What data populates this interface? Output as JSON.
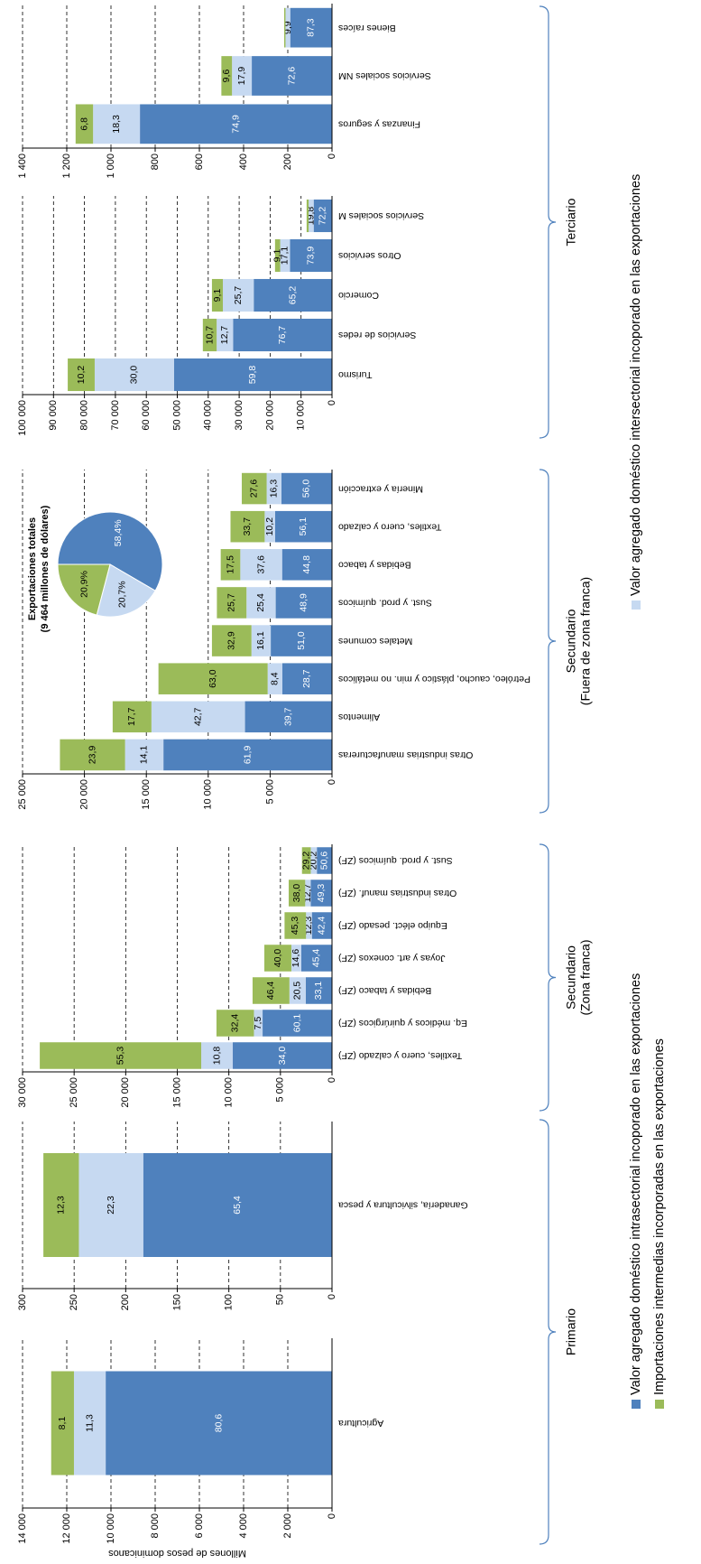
{
  "y_axis_title": "Millones de pesos  dominicanos",
  "groups": [
    {
      "label": [
        "Primario"
      ]
    },
    {
      "label": [
        "Secundario",
        "(Zona  franca)"
      ]
    },
    {
      "label": [
        "Secundario",
        "(Fuera de zona franca)"
      ]
    },
    {
      "label": [
        "Terciario"
      ]
    }
  ],
  "chart_data": [
    {
      "type": "stacked_bar",
      "categories": [
        "Agricultura"
      ],
      "series": [
        {
          "name": "Valor agregado doméstico intrasectorial incoporado en las exportaciones",
          "color": "#4f81bd",
          "values": [
            10240
          ],
          "percent_labels": [
            "80,6"
          ]
        },
        {
          "name": "Valor agregado doméstico intersectorial incoporado en las exportaciones",
          "color": "#c6d9f1",
          "values": [
            1435
          ],
          "percent_labels": [
            "11,3"
          ]
        },
        {
          "name": "Importaciones intermedias incorporadas en las exportaciones",
          "color": "#9bbb59",
          "values": [
            1030
          ],
          "percent_labels": [
            "8,1"
          ]
        }
      ],
      "ylim": [
        0,
        14000
      ],
      "yticks": [
        0,
        {
          "value": 2000,
          "label": "2 000"
        },
        {
          "value": 4000,
          "label": "4 000"
        },
        {
          "value": 6000,
          "label": "6 000"
        },
        {
          "value": 8000,
          "label": "8 000"
        },
        {
          "value": 10000,
          "label": "10 000"
        },
        {
          "value": 12000,
          "label": "12 000"
        },
        {
          "value": 14000,
          "label": "14 000"
        }
      ],
      "grid": true
    },
    {
      "type": "stacked_bar",
      "categories": [
        "Ganadería, silvicultura y pesca"
      ],
      "series": [
        {
          "color": "#4f81bd",
          "values": [
            183
          ],
          "percent_labels": [
            "65,4"
          ]
        },
        {
          "color": "#c6d9f1",
          "values": [
            62.4
          ],
          "percent_labels": [
            "22,3"
          ]
        },
        {
          "color": "#9bbb59",
          "values": [
            34.4
          ],
          "percent_labels": [
            "12,3"
          ]
        }
      ],
      "ylim": [
        0,
        300
      ],
      "yticks": [
        0,
        50,
        100,
        150,
        200,
        250,
        300
      ],
      "grid": true
    },
    {
      "type": "stacked_bar",
      "categories": [
        "Textiles, cuero y calzado (ZF)",
        "Eq. médicos y quirúrgicos (ZF)",
        "Bebidas y tabaco (ZF)",
        "Joyas y art. conexos (ZF)",
        "Equipo eléct. pesado (ZF)",
        "Otras industrias manuf. (ZF)",
        "Sust. y prod. químicos (ZF)"
      ],
      "series": [
        {
          "color": "#4f81bd",
          "values": [
            9620,
            6730,
            2550,
            2980,
            1950,
            2070,
            1470
          ],
          "percent_labels": [
            "34,0",
            "60,1",
            "33,1",
            "45,4",
            "42,4",
            "49,3",
            "50,6"
          ]
        },
        {
          "color": "#c6d9f1",
          "values": [
            3060,
            840,
            1580,
            960,
            570,
            530,
            590
          ],
          "percent_labels": [
            "10,8",
            "7,5",
            "20,5",
            "14,6",
            "12,3",
            "12,7",
            "20,2"
          ]
        },
        {
          "color": "#9bbb59",
          "values": [
            15650,
            3630,
            3570,
            2620,
            2080,
            1600,
            850
          ],
          "percent_labels": [
            "55,3",
            "32,4",
            "46,4",
            "40,0",
            "45,3",
            "38,0",
            "29,2"
          ]
        }
      ],
      "ylim": [
        0,
        30000
      ],
      "yticks": [
        0,
        {
          "value": 5000,
          "label": "5 000"
        },
        {
          "value": 10000,
          "label": "10 000"
        },
        {
          "value": 15000,
          "label": "15 000"
        },
        {
          "value": 20000,
          "label": "20 000"
        },
        {
          "value": 25000,
          "label": "25 000"
        },
        {
          "value": 30000,
          "label": "30 000"
        }
      ],
      "grid": true
    },
    {
      "type": "stacked_bar",
      "categories": [
        "Otras industrias manufactureras",
        "Alimentos",
        "Petróleo, caucho, plástico y min. no metálicos",
        "Metales comunes",
        "Sust. y prod. químicos",
        "Bebidas y tabaco",
        "Textiles, cuero y calzado",
        "Minería y extracción"
      ],
      "series": [
        {
          "color": "#4f81bd",
          "values": [
            13620,
            7030,
            4020,
            4950,
            4550,
            4030,
            4600,
            4090
          ],
          "percent_labels": [
            "61,9",
            "39,7",
            "28,7",
            "51,0",
            "48,9",
            "44,8",
            "56,1",
            "56,0"
          ]
        },
        {
          "color": "#c6d9f1",
          "values": [
            3100,
            7560,
            1180,
            1560,
            2360,
            3380,
            840,
            1190
          ],
          "percent_labels": [
            "14,1",
            "42,7",
            "8,4",
            "16,1",
            "25,4",
            "37,6",
            "10,2",
            "16,3"
          ]
        },
        {
          "color": "#9bbb59",
          "values": [
            5260,
            3130,
            8820,
            3190,
            2390,
            1580,
            2760,
            2010
          ],
          "percent_labels": [
            "23,9",
            "17,7",
            "63,0",
            "32,9",
            "25,7",
            "17,5",
            "33,7",
            "27,6"
          ]
        }
      ],
      "ylim": [
        0,
        25000
      ],
      "yticks": [
        0,
        {
          "value": 5000,
          "label": "5 000"
        },
        {
          "value": 10000,
          "label": "10 000"
        },
        {
          "value": 15000,
          "label": "15 000"
        },
        {
          "value": 20000,
          "label": "20 000"
        },
        {
          "value": 25000,
          "label": "25 000"
        }
      ],
      "grid": true
    },
    {
      "type": "pie",
      "title": "Exportaciones totales",
      "subtitle": "(9 464 millones de dólares)",
      "values": [
        58.4,
        20.7,
        20.9
      ],
      "value_labels": [
        "58,4%",
        "20,7%",
        "20,9%"
      ],
      "colors": [
        "#4f81bd",
        "#c6d9f1",
        "#9bbb59"
      ]
    },
    {
      "type": "stacked_bar",
      "categories": [
        "Turismo",
        "Servicios de redes",
        "Comercio",
        "Otros servicios",
        "Servicios sociales M"
      ],
      "series": [
        {
          "color": "#4f81bd",
          "values": [
            51070,
            31980,
            25300,
            13600,
            5920
          ],
          "percent_labels": [
            "59,8",
            "76,7",
            "65,2",
            "73,9",
            "72,2"
          ]
        },
        {
          "color": "#c6d9f1",
          "values": [
            25620,
            5300,
            9970,
            3150,
            1620
          ],
          "percent_labels": [
            "30,0",
            "12,7",
            "25,7",
            "17,1",
            "19,8"
          ]
        },
        {
          "color": "#9bbb59",
          "values": [
            8710,
            4460,
            3530,
            1660,
            660
          ],
          "percent_labels": [
            "10,2",
            "10,7",
            "9,1",
            "9,1",
            null
          ]
        }
      ],
      "ylim": [
        0,
        100000
      ],
      "yticks": [
        0,
        {
          "value": 10000,
          "label": "10 000"
        },
        {
          "value": 20000,
          "label": "20 000"
        },
        {
          "value": 30000,
          "label": "30 000"
        },
        {
          "value": 40000,
          "label": "40 000"
        },
        {
          "value": 50000,
          "label": "50 000"
        },
        {
          "value": 60000,
          "label": "60 000"
        },
        {
          "value": 70000,
          "label": "70 000"
        },
        {
          "value": 80000,
          "label": "80 000"
        },
        {
          "value": 90000,
          "label": "90 000"
        },
        {
          "value": 100000,
          "label": "100 000"
        }
      ],
      "grid": true
    },
    {
      "type": "stacked_bar",
      "categories": [
        "Finanzas y seguros",
        "Servicios sociales NM",
        "Bienes raíces"
      ],
      "series": [
        {
          "color": "#4f81bd",
          "values": [
            869,
            363,
            189
          ],
          "percent_labels": [
            "74,9",
            "72,6",
            "87,3"
          ]
        },
        {
          "color": "#c6d9f1",
          "values": [
            212,
            89.5,
            21.4
          ],
          "percent_labels": [
            "18,3",
            "17,9",
            "9,9"
          ]
        },
        {
          "color": "#9bbb59",
          "values": [
            79,
            48,
            6
          ],
          "percent_labels": [
            "6,8",
            "9,6",
            null
          ]
        }
      ],
      "ylim": [
        0,
        1400
      ],
      "yticks": [
        0,
        200,
        400,
        600,
        800,
        {
          "value": 1000,
          "label": "1 000"
        },
        {
          "value": 1200,
          "label": "1 200"
        },
        {
          "value": 1400,
          "label": "1 400"
        }
      ],
      "grid": true
    }
  ]
}
